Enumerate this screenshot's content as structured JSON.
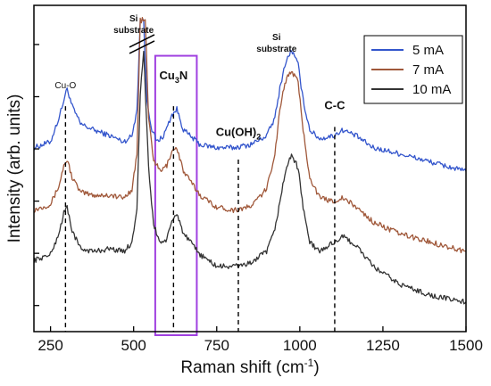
{
  "chart_data": {
    "type": "line",
    "title": "",
    "xlabel": "Raman shift (cm",
    "xlabel_sup": "-1",
    "xlabel_end": ")",
    "ylabel": "Intensity (arb. units)",
    "xlim": [
      200,
      1500
    ],
    "ylim": [
      0,
      1
    ],
    "xticks": [
      {
        "value": 250,
        "label": "250"
      },
      {
        "value": 500,
        "label": "500"
      },
      {
        "value": 750,
        "label": "750"
      },
      {
        "value": 1000,
        "label": "1000"
      },
      {
        "value": 1250,
        "label": "1250"
      },
      {
        "value": 1500,
        "label": "1500"
      }
    ],
    "legend_position": "top-right",
    "series": [
      {
        "name": "5 mA",
        "color": "#3355cc",
        "offset": 0.35,
        "points": [
          [
            200,
            0.62
          ],
          [
            250,
            0.64
          ],
          [
            275,
            0.72
          ],
          [
            290,
            0.78
          ],
          [
            300,
            0.82
          ],
          [
            315,
            0.76
          ],
          [
            340,
            0.7
          ],
          [
            380,
            0.68
          ],
          [
            430,
            0.66
          ],
          [
            470,
            0.64
          ],
          [
            495,
            0.66
          ],
          [
            510,
            0.75
          ],
          [
            520,
            1.05
          ],
          [
            530,
            1.05
          ],
          [
            540,
            0.78
          ],
          [
            555,
            0.68
          ],
          [
            570,
            0.64
          ],
          [
            590,
            0.66
          ],
          [
            615,
            0.73
          ],
          [
            630,
            0.75
          ],
          [
            650,
            0.68
          ],
          [
            700,
            0.63
          ],
          [
            750,
            0.62
          ],
          [
            800,
            0.62
          ],
          [
            850,
            0.63
          ],
          [
            900,
            0.66
          ],
          [
            925,
            0.72
          ],
          [
            940,
            0.82
          ],
          [
            955,
            0.9
          ],
          [
            975,
            0.95
          ],
          [
            995,
            0.9
          ],
          [
            1010,
            0.78
          ],
          [
            1030,
            0.68
          ],
          [
            1060,
            0.65
          ],
          [
            1100,
            0.66
          ],
          [
            1130,
            0.68
          ],
          [
            1170,
            0.66
          ],
          [
            1220,
            0.62
          ],
          [
            1300,
            0.6
          ],
          [
            1400,
            0.57
          ],
          [
            1500,
            0.54
          ]
        ]
      },
      {
        "name": "7 mA",
        "color": "#a0583a",
        "offset": 0.15,
        "points": [
          [
            200,
            0.41
          ],
          [
            250,
            0.43
          ],
          [
            275,
            0.49
          ],
          [
            290,
            0.56
          ],
          [
            300,
            0.58
          ],
          [
            315,
            0.52
          ],
          [
            340,
            0.47
          ],
          [
            380,
            0.46
          ],
          [
            430,
            0.46
          ],
          [
            470,
            0.45
          ],
          [
            495,
            0.48
          ],
          [
            510,
            0.6
          ],
          [
            520,
            1.05
          ],
          [
            535,
            1.05
          ],
          [
            545,
            0.72
          ],
          [
            560,
            0.58
          ],
          [
            580,
            0.54
          ],
          [
            600,
            0.56
          ],
          [
            615,
            0.61
          ],
          [
            630,
            0.62
          ],
          [
            650,
            0.54
          ],
          [
            700,
            0.46
          ],
          [
            750,
            0.42
          ],
          [
            800,
            0.41
          ],
          [
            850,
            0.42
          ],
          [
            900,
            0.48
          ],
          [
            925,
            0.6
          ],
          [
            940,
            0.75
          ],
          [
            955,
            0.84
          ],
          [
            975,
            0.88
          ],
          [
            995,
            0.84
          ],
          [
            1010,
            0.68
          ],
          [
            1030,
            0.52
          ],
          [
            1060,
            0.45
          ],
          [
            1100,
            0.44
          ],
          [
            1130,
            0.45
          ],
          [
            1170,
            0.42
          ],
          [
            1220,
            0.37
          ],
          [
            1300,
            0.33
          ],
          [
            1400,
            0.3
          ],
          [
            1500,
            0.27
          ]
        ]
      },
      {
        "name": "10 mA",
        "color": "#333333",
        "offset": 0.0,
        "points": [
          [
            200,
            0.24
          ],
          [
            250,
            0.26
          ],
          [
            275,
            0.33
          ],
          [
            290,
            0.4
          ],
          [
            300,
            0.42
          ],
          [
            315,
            0.34
          ],
          [
            340,
            0.28
          ],
          [
            380,
            0.27
          ],
          [
            430,
            0.28
          ],
          [
            470,
            0.27
          ],
          [
            495,
            0.3
          ],
          [
            510,
            0.42
          ],
          [
            520,
            0.8
          ],
          [
            530,
            0.95
          ],
          [
            545,
            0.55
          ],
          [
            560,
            0.36
          ],
          [
            580,
            0.3
          ],
          [
            600,
            0.31
          ],
          [
            615,
            0.37
          ],
          [
            630,
            0.4
          ],
          [
            650,
            0.33
          ],
          [
            700,
            0.26
          ],
          [
            750,
            0.22
          ],
          [
            800,
            0.22
          ],
          [
            850,
            0.23
          ],
          [
            900,
            0.27
          ],
          [
            925,
            0.34
          ],
          [
            940,
            0.44
          ],
          [
            955,
            0.53
          ],
          [
            975,
            0.6
          ],
          [
            995,
            0.55
          ],
          [
            1010,
            0.42
          ],
          [
            1030,
            0.3
          ],
          [
            1060,
            0.27
          ],
          [
            1100,
            0.3
          ],
          [
            1130,
            0.32
          ],
          [
            1170,
            0.29
          ],
          [
            1220,
            0.22
          ],
          [
            1300,
            0.16
          ],
          [
            1400,
            0.12
          ],
          [
            1500,
            0.1
          ]
        ]
      }
    ],
    "vlines": [
      {
        "x": 295,
        "label": "Cu-O"
      },
      {
        "x": 620,
        "label": "Cu",
        "sub": "3",
        "label_end": "N"
      },
      {
        "x": 815,
        "label": "Cu(OH)",
        "sub": "2",
        "label_end": ""
      },
      {
        "x": 1105,
        "label": "C-C"
      }
    ],
    "highlight_box": {
      "x_from": 565,
      "x_to": 690,
      "color": "#a040e0"
    },
    "annotations": [
      {
        "text_lines": [
          "Si",
          "substrate"
        ],
        "x": 500
      },
      {
        "text_lines": [
          "Si",
          "substrate"
        ],
        "x": 930
      }
    ]
  }
}
